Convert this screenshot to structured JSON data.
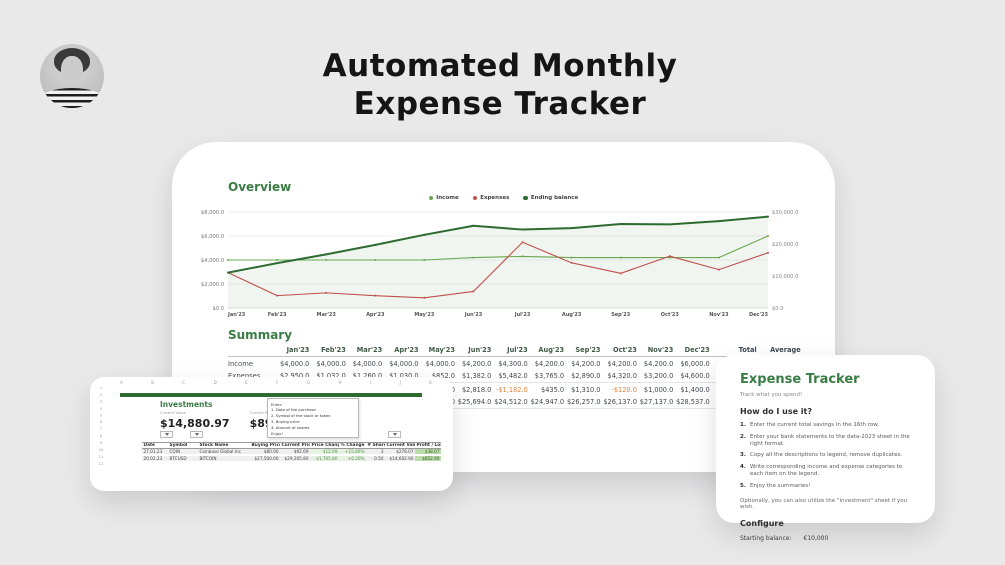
{
  "page": {
    "title_line1": "Automated Monthly",
    "title_line2": "Expense Tracker"
  },
  "overview": {
    "heading": "Overview"
  },
  "chart_data": {
    "type": "line",
    "title": "Overview",
    "x": [
      "Jan'23",
      "Feb'23",
      "Mar'23",
      "Apr'23",
      "May'23",
      "Jun'23",
      "Jul'23",
      "Aug'23",
      "Sep'23",
      "Oct'23",
      "Nov'23",
      "Dec'23"
    ],
    "series": [
      {
        "name": "Income",
        "axis": "left",
        "color": "#6aa84f",
        "width": 1.1,
        "values": [
          4000,
          4000,
          4000,
          4000,
          4000,
          4200,
          4300,
          4200,
          4200,
          4200,
          4200,
          6000
        ]
      },
      {
        "name": "Expenses",
        "axis": "left",
        "color": "#c0504d",
        "width": 1.1,
        "values": [
          2950,
          1032,
          1260,
          1030,
          852,
          1382,
          5482,
          3765,
          2890,
          4320,
          3200,
          4600
        ]
      },
      {
        "name": "Ending balance",
        "axis": "right",
        "color": "#2d6b2f",
        "width": 2,
        "area": true,
        "values": [
          11050,
          14018,
          16758,
          19728,
          22876,
          25694,
          24512,
          24947,
          26257,
          26137,
          27137,
          28537
        ]
      }
    ],
    "left_axis": {
      "min": 0,
      "max": 8000,
      "ticks": [
        "$0.0",
        "$2,000.0",
        "$4,000.0",
        "$6,000.0",
        "$8,000.0"
      ]
    },
    "right_axis": {
      "min": 0,
      "max": 30000,
      "ticks": [
        "$0.0",
        "$10,000.0",
        "$20,000.0",
        "$30,000.0"
      ]
    },
    "legend_position": "top",
    "grid": true
  },
  "summary": {
    "heading": "Summary",
    "columns": [
      "Jan'23",
      "Feb'23",
      "Mar'23",
      "Apr'23",
      "May'23",
      "Jun'23",
      "Jul'23",
      "Aug'23",
      "Sep'23",
      "Oct'23",
      "Nov'23",
      "Dec'23"
    ],
    "total_header": "Total",
    "average_header": "Average",
    "rows": [
      {
        "label": "Income",
        "cells": [
          "$4,000.0",
          "$4,000.0",
          "$4,000.0",
          "$4,000.0",
          "$4,000.0",
          "$4,200.0",
          "$4,300.0",
          "$4,200.0",
          "$4,200.0",
          "$4,200.0",
          "$4,200.0",
          "$6,000.0"
        ]
      },
      {
        "label": "Expenses",
        "cells": [
          "$2,950.0",
          "$1,032.0",
          "$1,260.0",
          "$1,030.0",
          "$852.0",
          "$1,382.0",
          "$5,482.0",
          "$3,765.0",
          "$2,890.0",
          "$4,320.0",
          "$3,200.0",
          "$4,600.0"
        ]
      },
      {
        "label": "",
        "cells": [
          "",
          "",
          "",
          "",
          "$3,148.0",
          "$2,818.0",
          "-$1,182.0",
          "$435.0",
          "$1,310.0",
          "-$120.0",
          "$1,000.0",
          "$1,400.0"
        ]
      },
      {
        "label": "",
        "cells": [
          "",
          "",
          "",
          "",
          "$22,876.0",
          "$25,694.0",
          "$24,512.0",
          "$24,947.0",
          "$26,257.0",
          "$26,137.0",
          "$27,137.0",
          "$28,537.0"
        ]
      }
    ]
  },
  "investments": {
    "heading": "Investments",
    "current_value_label": "Current Value",
    "current_value": "$14,880.97",
    "profit_label": "Current Profit / Loss",
    "profit_value": "$890.97",
    "note_lines": [
      "Enter:",
      "1. Date of the purchase",
      "2. Symbol of the stock or token",
      "3. Buying price",
      "4. Amount of shares",
      "Enjoy!"
    ],
    "column_letters": [
      "A",
      "B",
      "C",
      "D",
      "E",
      "F",
      "G",
      "H",
      "I",
      "J",
      "K"
    ],
    "row_numbers": [
      "1",
      "2",
      "3",
      "4",
      "5",
      "6",
      "7",
      "8",
      "9",
      "10",
      "11",
      "12"
    ],
    "columns": [
      "Date",
      "Symbol",
      "Stock Name",
      "Buying Price",
      "Current Price",
      "Price Change",
      "% Change",
      "# Shares",
      "Current Value",
      "Profit / Loss"
    ],
    "rows": [
      [
        "27.01.23",
        "COIN",
        "Coinbase Global Inc",
        "$80.00",
        "$92.69",
        "$12.69",
        "+15.86%",
        "3",
        "$278.07",
        "$38.07"
      ],
      [
        "20.02.23",
        "BTCUSD",
        "BITCOIN",
        "$27,500.00",
        "$29,205.80",
        "$1,705.80",
        "+6.20%",
        "0.50",
        "$14,602.90",
        "$852.90"
      ]
    ]
  },
  "tracker_card": {
    "title": "Expense Tracker",
    "subtitle": "Track what you spend!",
    "how_heading": "How do I use it?",
    "steps": [
      "Enter the current total savings in the 16th row.",
      "Enter your bank statements to the data-2023 sheet in the right format.",
      "Copy all the descriptions to legend, remove duplicates.",
      "Write corresponding income and expense categories to each item on the legend.",
      "Enjoy the summaries!"
    ],
    "optional_note": "Optionally, you can also utilize the \"investment\" sheet if you wish.",
    "configure_heading": "Configure",
    "starting_balance_label": "Starting balance:",
    "starting_balance_value": "€10,000"
  }
}
